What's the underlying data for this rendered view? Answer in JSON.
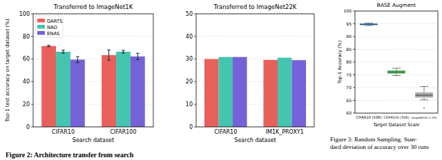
{
  "chart_data": [
    {
      "type": "bar",
      "title": "Transferred to ImageNet1K",
      "x_label": "Search dataset",
      "y_label": "Top-1 test accuracy on target dataset (%)",
      "categories": [
        "CIFAR10",
        "CIFAR100"
      ],
      "series": [
        {
          "name": "DARTS",
          "color": "#e8605c",
          "values": [
            71.5,
            63.5
          ],
          "errors": [
            0.6,
            4.5
          ]
        },
        {
          "name": "NAO",
          "color": "#45c4b0",
          "values": [
            66.5,
            66.5
          ],
          "errors": [
            1.3,
            1.2
          ]
        },
        {
          "name": "ENAS",
          "color": "#7462d6",
          "values": [
            59.5,
            62.3
          ],
          "errors": [
            2.6,
            2.8
          ]
        }
      ],
      "ylim": [
        0,
        100
      ],
      "yticks": [
        0,
        20,
        40,
        60,
        80,
        100
      ],
      "grid": true,
      "legend": "upper left"
    },
    {
      "type": "bar",
      "title": "Transferred to ImageNet22K",
      "x_label": "Search dataset",
      "categories": [
        "CIFAR10",
        "IM1K_PROXY1"
      ],
      "series": [
        {
          "color": "#e8605c",
          "values": [
            30.0,
            29.6
          ]
        },
        {
          "color": "#45c4b0",
          "values": [
            30.9,
            30.6
          ]
        },
        {
          "color": "#7462d6",
          "values": [
            30.9,
            29.5
          ]
        }
      ],
      "ylim": [
        0,
        50
      ],
      "yticks": [
        0,
        10,
        20,
        30,
        40,
        50
      ],
      "grid": true
    },
    {
      "type": "box",
      "title": "BASE Augment",
      "x_label": "Target Dataset Scale",
      "y_label": "Top-1 Accuracy (%)",
      "categories": [
        "CIFAR10 (50K)",
        "CIFAR100 (50K)",
        "ImageNet1K (1.2M)"
      ],
      "stats": [
        {
          "low": 94.3,
          "q1": 94.6,
          "median": 94.8,
          "q3": 95.0,
          "high": 95.3,
          "outliers": []
        },
        {
          "low": 74.7,
          "q1": 75.6,
          "median": 76.1,
          "q3": 76.6,
          "high": 77.6,
          "outliers": []
        },
        {
          "low": 65.2,
          "q1": 66.2,
          "median": 67.0,
          "q3": 68.0,
          "high": 70.4,
          "outliers": [
            61.9
          ]
        }
      ],
      "colors": [
        "#3d8fda",
        "#5cbd62",
        "#a9a9a9"
      ],
      "ylim": [
        60,
        100
      ],
      "yticks": [
        60,
        65,
        70,
        75,
        80,
        85,
        90,
        95,
        100
      ],
      "grid": true
    }
  ],
  "captions": [
    {
      "lines": [
        "Figure 2: Architecture transfer from search"
      ]
    },
    {
      "lines": [
        "Figure 3: Random Sampling. Stan-",
        "dard deviation of accuracy over 30 runs"
      ]
    }
  ]
}
